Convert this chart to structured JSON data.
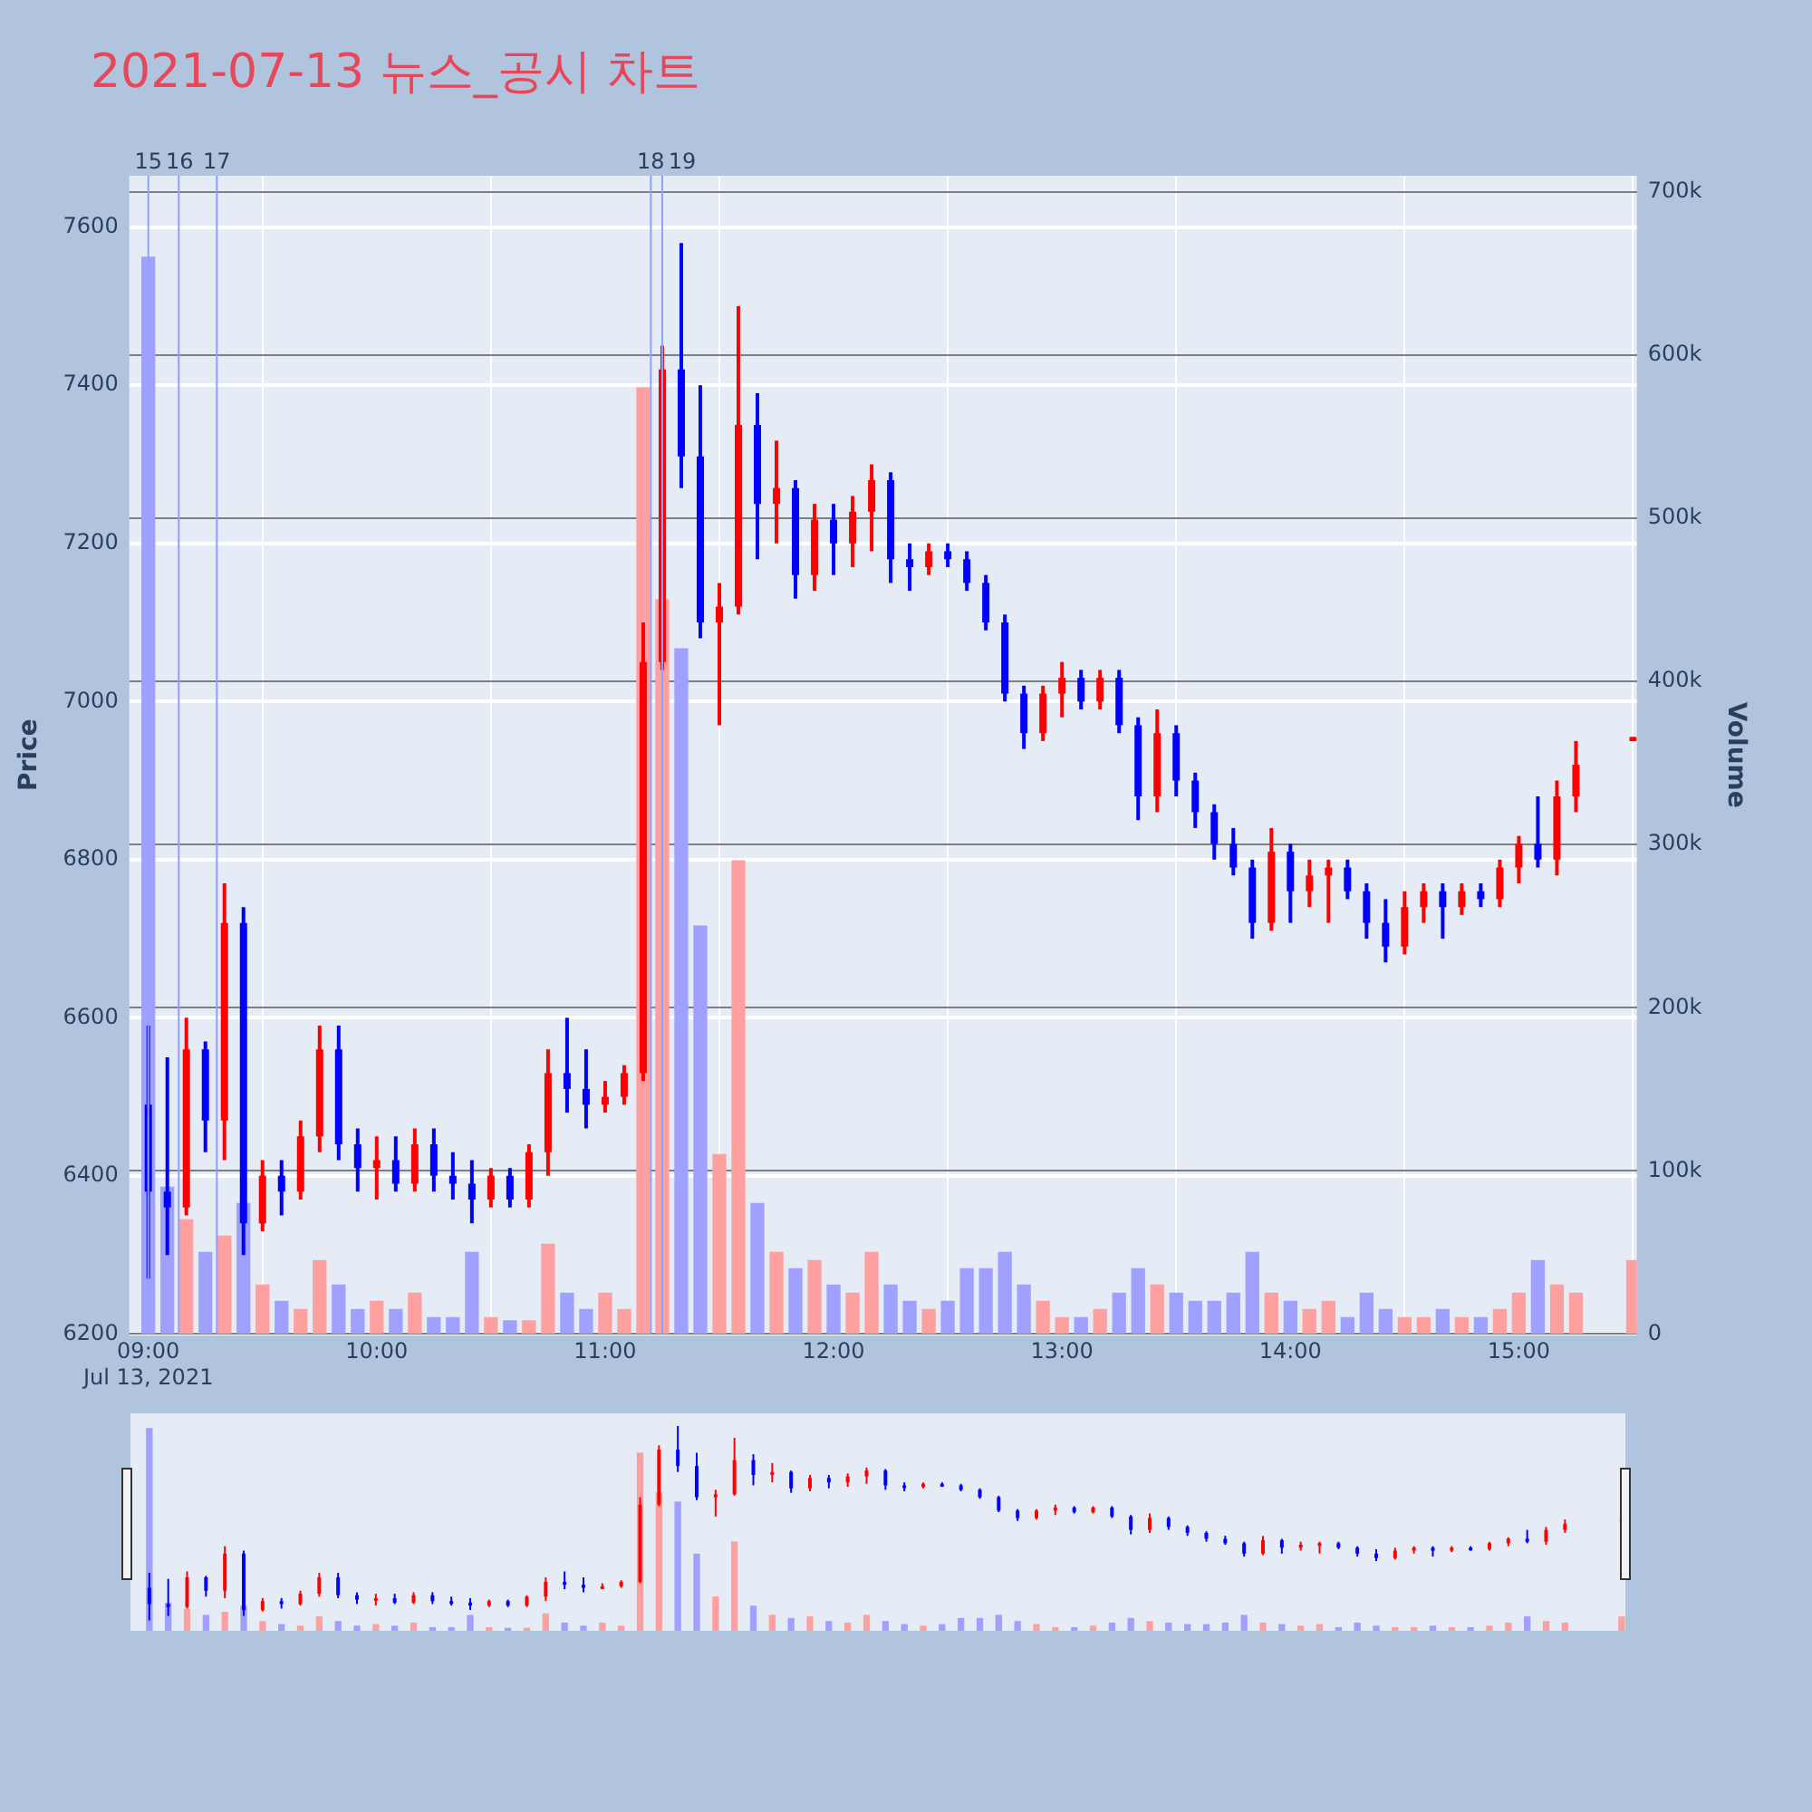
{
  "chart_data": {
    "type": "candlestick",
    "title": "2021-07-13 뉴스_공시 차트",
    "ylabel": "Price",
    "y2label": "Volume",
    "x": [
      "2021-07-13T09:00",
      "2021-07-13T09:05",
      "2021-07-13T09:10",
      "2021-07-13T09:15",
      "2021-07-13T09:20",
      "2021-07-13T09:25",
      "2021-07-13T09:30",
      "2021-07-13T09:35",
      "2021-07-13T09:40",
      "2021-07-13T09:45",
      "2021-07-13T09:50",
      "2021-07-13T09:55",
      "2021-07-13T10:00",
      "2021-07-13T10:05",
      "2021-07-13T10:10",
      "2021-07-13T10:15",
      "2021-07-13T10:20",
      "2021-07-13T10:25",
      "2021-07-13T10:30",
      "2021-07-13T10:35",
      "2021-07-13T10:40",
      "2021-07-13T10:45",
      "2021-07-13T10:50",
      "2021-07-13T10:55",
      "2021-07-13T11:00",
      "2021-07-13T11:05",
      "2021-07-13T11:10",
      "2021-07-13T11:15",
      "2021-07-13T11:20",
      "2021-07-13T11:25",
      "2021-07-13T11:30",
      "2021-07-13T11:35",
      "2021-07-13T11:40",
      "2021-07-13T11:45",
      "2021-07-13T11:50",
      "2021-07-13T11:55",
      "2021-07-13T12:00",
      "2021-07-13T12:05",
      "2021-07-13T12:10",
      "2021-07-13T12:15",
      "2021-07-13T12:20",
      "2021-07-13T12:25",
      "2021-07-13T12:30",
      "2021-07-13T12:35",
      "2021-07-13T12:40",
      "2021-07-13T12:45",
      "2021-07-13T12:50",
      "2021-07-13T12:55",
      "2021-07-13T13:00",
      "2021-07-13T13:05",
      "2021-07-13T13:10",
      "2021-07-13T13:15",
      "2021-07-13T13:20",
      "2021-07-13T13:25",
      "2021-07-13T13:30",
      "2021-07-13T13:35",
      "2021-07-13T13:40",
      "2021-07-13T13:45",
      "2021-07-13T13:50",
      "2021-07-13T13:55",
      "2021-07-13T14:00",
      "2021-07-13T14:05",
      "2021-07-13T14:10",
      "2021-07-13T14:15",
      "2021-07-13T14:20",
      "2021-07-13T14:25",
      "2021-07-13T14:30",
      "2021-07-13T14:35",
      "2021-07-13T14:40",
      "2021-07-13T14:45",
      "2021-07-13T14:50",
      "2021-07-13T14:55",
      "2021-07-13T15:00",
      "2021-07-13T15:05",
      "2021-07-13T15:10",
      "2021-07-13T15:15",
      "2021-07-13T15:30"
    ],
    "series": [
      {
        "type": "candlestick",
        "ohlc": [
          [
            6490,
            6590,
            6270,
            6380
          ],
          [
            6380,
            6550,
            6300,
            6360
          ],
          [
            6360,
            6600,
            6350,
            6560
          ],
          [
            6560,
            6570,
            6430,
            6470
          ],
          [
            6470,
            6770,
            6420,
            6720
          ],
          [
            6720,
            6740,
            6300,
            6340
          ],
          [
            6340,
            6420,
            6330,
            6400
          ],
          [
            6400,
            6420,
            6350,
            6380
          ],
          [
            6380,
            6470,
            6370,
            6450
          ],
          [
            6450,
            6590,
            6430,
            6560
          ],
          [
            6560,
            6590,
            6420,
            6440
          ],
          [
            6440,
            6460,
            6380,
            6410
          ],
          [
            6410,
            6450,
            6370,
            6420
          ],
          [
            6420,
            6450,
            6380,
            6390
          ],
          [
            6390,
            6460,
            6380,
            6440
          ],
          [
            6440,
            6460,
            6380,
            6400
          ],
          [
            6400,
            6430,
            6370,
            6390
          ],
          [
            6390,
            6420,
            6340,
            6370
          ],
          [
            6370,
            6410,
            6360,
            6400
          ],
          [
            6400,
            6410,
            6360,
            6370
          ],
          [
            6370,
            6440,
            6360,
            6430
          ],
          [
            6430,
            6560,
            6400,
            6530
          ],
          [
            6530,
            6600,
            6480,
            6510
          ],
          [
            6510,
            6560,
            6460,
            6490
          ],
          [
            6490,
            6520,
            6480,
            6500
          ],
          [
            6500,
            6540,
            6490,
            6530
          ],
          [
            6530,
            7100,
            6520,
            7050
          ],
          [
            7050,
            7450,
            7040,
            7420
          ],
          [
            7420,
            7580,
            7270,
            7310
          ],
          [
            7310,
            7400,
            7080,
            7100
          ],
          [
            7100,
            7150,
            6970,
            7120
          ],
          [
            7120,
            7500,
            7110,
            7350
          ],
          [
            7350,
            7390,
            7180,
            7250
          ],
          [
            7250,
            7330,
            7200,
            7270
          ],
          [
            7270,
            7280,
            7130,
            7160
          ],
          [
            7160,
            7250,
            7140,
            7230
          ],
          [
            7230,
            7250,
            7160,
            7200
          ],
          [
            7200,
            7260,
            7170,
            7240
          ],
          [
            7240,
            7300,
            7190,
            7280
          ],
          [
            7280,
            7290,
            7150,
            7180
          ],
          [
            7180,
            7200,
            7140,
            7170
          ],
          [
            7170,
            7200,
            7160,
            7190
          ],
          [
            7190,
            7200,
            7170,
            7180
          ],
          [
            7180,
            7190,
            7140,
            7150
          ],
          [
            7150,
            7160,
            7090,
            7100
          ],
          [
            7100,
            7110,
            7000,
            7010
          ],
          [
            7010,
            7020,
            6940,
            6960
          ],
          [
            6960,
            7020,
            6950,
            7010
          ],
          [
            7010,
            7050,
            6980,
            7030
          ],
          [
            7030,
            7040,
            6990,
            7000
          ],
          [
            7000,
            7040,
            6990,
            7030
          ],
          [
            7030,
            7040,
            6960,
            6970
          ],
          [
            6970,
            6980,
            6850,
            6880
          ],
          [
            6880,
            6990,
            6860,
            6960
          ],
          [
            6960,
            6970,
            6880,
            6900
          ],
          [
            6900,
            6910,
            6840,
            6860
          ],
          [
            6860,
            6870,
            6800,
            6820
          ],
          [
            6820,
            6840,
            6780,
            6790
          ],
          [
            6790,
            6800,
            6700,
            6720
          ],
          [
            6720,
            6840,
            6710,
            6810
          ],
          [
            6810,
            6820,
            6720,
            6760
          ],
          [
            6760,
            6800,
            6740,
            6780
          ],
          [
            6780,
            6800,
            6720,
            6790
          ],
          [
            6790,
            6800,
            6750,
            6760
          ],
          [
            6760,
            6770,
            6700,
            6720
          ],
          [
            6720,
            6750,
            6670,
            6690
          ],
          [
            6690,
            6760,
            6680,
            6740
          ],
          [
            6740,
            6770,
            6720,
            6760
          ],
          [
            6760,
            6770,
            6700,
            6740
          ],
          [
            6740,
            6770,
            6730,
            6760
          ],
          [
            6760,
            6770,
            6740,
            6750
          ],
          [
            6750,
            6800,
            6740,
            6790
          ],
          [
            6790,
            6830,
            6770,
            6820
          ],
          [
            6820,
            6880,
            6790,
            6800
          ],
          [
            6800,
            6900,
            6780,
            6880
          ],
          [
            6880,
            6950,
            6860,
            6920
          ],
          [
            6950,
            6955,
            6950,
            6955
          ]
        ],
        "colors": [
          "#0000ff",
          "#0000ff",
          "#ff0000",
          "#0000ff",
          "#ff0000",
          "#0000ff",
          "#ff0000",
          "#0000ff",
          "#ff0000",
          "#ff0000",
          "#0000ff",
          "#0000ff",
          "#ff0000",
          "#0000ff",
          "#ff0000",
          "#0000ff",
          "#0000ff",
          "#0000ff",
          "#ff0000",
          "#0000ff",
          "#ff0000",
          "#ff0000",
          "#0000ff",
          "#0000ff",
          "#ff0000",
          "#ff0000",
          "#ff0000",
          "#ff0000",
          "#0000ff",
          "#0000ff",
          "#ff0000",
          "#ff0000",
          "#0000ff",
          "#ff0000",
          "#0000ff",
          "#ff0000",
          "#0000ff",
          "#ff0000",
          "#ff0000",
          "#0000ff",
          "#0000ff",
          "#ff0000",
          "#0000ff",
          "#0000ff",
          "#0000ff",
          "#0000ff",
          "#0000ff",
          "#ff0000",
          "#ff0000",
          "#0000ff",
          "#ff0000",
          "#0000ff",
          "#0000ff",
          "#ff0000",
          "#0000ff",
          "#0000ff",
          "#0000ff",
          "#0000ff",
          "#0000ff",
          "#ff0000",
          "#0000ff",
          "#ff0000",
          "#ff0000",
          "#0000ff",
          "#0000ff",
          "#0000ff",
          "#ff0000",
          "#ff0000",
          "#0000ff",
          "#ff0000",
          "#0000ff",
          "#ff0000",
          "#ff0000",
          "#0000ff",
          "#ff0000",
          "#ff0000",
          "#ff0000"
        ]
      },
      {
        "type": "bar",
        "axis": "y2",
        "values": [
          660000,
          90000,
          70000,
          50000,
          60000,
          80000,
          30000,
          20000,
          15000,
          45000,
          30000,
          15000,
          20000,
          15000,
          25000,
          10000,
          10000,
          50000,
          10000,
          8000,
          8000,
          55000,
          25000,
          15000,
          25000,
          15000,
          580000,
          450000,
          420000,
          250000,
          110000,
          290000,
          80000,
          50000,
          40000,
          45000,
          30000,
          25000,
          50000,
          30000,
          20000,
          15000,
          20000,
          40000,
          40000,
          50000,
          30000,
          20000,
          10000,
          10000,
          15000,
          25000,
          40000,
          30000,
          25000,
          20000,
          20000,
          25000,
          50000,
          25000,
          20000,
          15000,
          20000,
          10000,
          25000,
          15000,
          10000,
          10000,
          15000,
          10000,
          10000,
          15000,
          25000,
          45000,
          30000,
          25000,
          45000
        ],
        "colors": [
          "#a0a0ff",
          "#a0a0ff",
          "#ffa0a0",
          "#a0a0ff",
          "#ffa0a0",
          "#a0a0ff",
          "#ffa0a0",
          "#a0a0ff",
          "#ffa0a0",
          "#ffa0a0",
          "#a0a0ff",
          "#a0a0ff",
          "#ffa0a0",
          "#a0a0ff",
          "#ffa0a0",
          "#a0a0ff",
          "#a0a0ff",
          "#a0a0ff",
          "#ffa0a0",
          "#a0a0ff",
          "#ffa0a0",
          "#ffa0a0",
          "#a0a0ff",
          "#a0a0ff",
          "#ffa0a0",
          "#ffa0a0",
          "#ffa0a0",
          "#ffa0a0",
          "#a0a0ff",
          "#a0a0ff",
          "#ffa0a0",
          "#ffa0a0",
          "#a0a0ff",
          "#ffa0a0",
          "#a0a0ff",
          "#ffa0a0",
          "#a0a0ff",
          "#ffa0a0",
          "#ffa0a0",
          "#a0a0ff",
          "#a0a0ff",
          "#ffa0a0",
          "#a0a0ff",
          "#a0a0ff",
          "#a0a0ff",
          "#a0a0ff",
          "#a0a0ff",
          "#ffa0a0",
          "#ffa0a0",
          "#a0a0ff",
          "#ffa0a0",
          "#a0a0ff",
          "#a0a0ff",
          "#ffa0a0",
          "#a0a0ff",
          "#a0a0ff",
          "#a0a0ff",
          "#a0a0ff",
          "#a0a0ff",
          "#ffa0a0",
          "#a0a0ff",
          "#ffa0a0",
          "#ffa0a0",
          "#a0a0ff",
          "#a0a0ff",
          "#a0a0ff",
          "#ffa0a0",
          "#ffa0a0",
          "#a0a0ff",
          "#ffa0a0",
          "#a0a0ff",
          "#ffa0a0",
          "#ffa0a0",
          "#a0a0ff",
          "#ffa0a0",
          "#ffa0a0",
          "#ffa0a0"
        ]
      }
    ],
    "xlim": [
      "2021-07-13T08:55",
      "2021-07-13T15:31"
    ],
    "xticks": [
      {
        "value": "2021-07-13T09:00",
        "label": "09:00\nJul 13, 2021"
      },
      {
        "value": "2021-07-13T10:00",
        "label": "10:00"
      },
      {
        "value": "2021-07-13T11:00",
        "label": "11:00"
      },
      {
        "value": "2021-07-13T12:00",
        "label": "12:00"
      },
      {
        "value": "2021-07-13T13:00",
        "label": "13:00"
      },
      {
        "value": "2021-07-13T14:00",
        "label": "14:00"
      },
      {
        "value": "2021-07-13T15:00",
        "label": "15:00"
      }
    ],
    "ylim": [
      6200,
      7665
    ],
    "yticks": [
      6200,
      6400,
      6600,
      6800,
      7000,
      7200,
      7400,
      7600
    ],
    "y2lim": [
      0,
      710000
    ],
    "y2ticks": [
      0,
      {
        "value": 100000,
        "label": "100k"
      },
      {
        "value": 200000,
        "label": "200k"
      },
      {
        "value": 300000,
        "label": "300k"
      },
      {
        "value": 400000,
        "label": "400k"
      },
      {
        "value": 500000,
        "label": "500k"
      },
      {
        "value": 600000,
        "label": "600k"
      },
      {
        "value": 700000,
        "label": "700k"
      }
    ],
    "ref_lines": [
      {
        "axis": "x",
        "value": "2021-07-13T09:00",
        "label": "15",
        "color": "#8f9fff"
      },
      {
        "axis": "x",
        "value": "2021-07-13T09:08",
        "label": "16",
        "color": "#8f9fff"
      },
      {
        "axis": "x",
        "value": "2021-07-13T09:18",
        "label": "17",
        "color": "#8f9fff"
      },
      {
        "axis": "x",
        "value": "2021-07-13T11:12",
        "label": "18",
        "color": "#8f9fff"
      },
      {
        "axis": "x",
        "value": "2021-07-13T11:15",
        "label": "19",
        "color": "#8f9fff"
      }
    ],
    "grid": true,
    "legend": false
  }
}
